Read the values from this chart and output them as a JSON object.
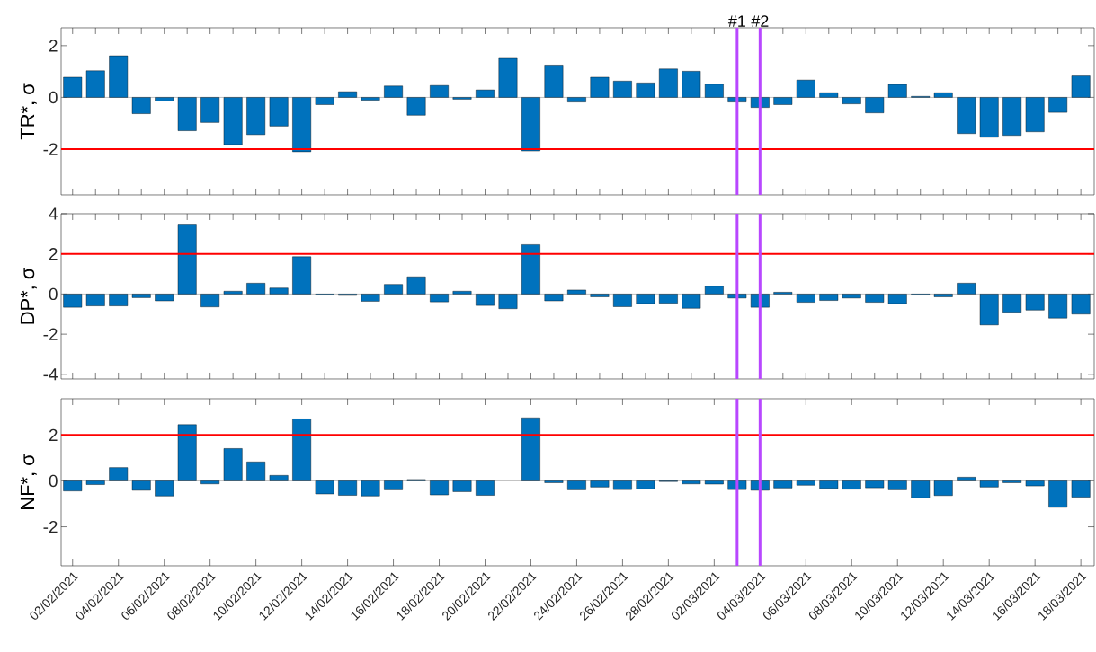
{
  "chart_data": [
    {
      "type": "bar",
      "ylabel": "TR*, σ",
      "color": "#0072bd",
      "tick_labels": "y",
      "x": [
        "2021-02-02",
        "2021-02-03",
        "2021-02-04",
        "2021-02-05",
        "2021-02-06",
        "2021-02-07",
        "2021-02-08",
        "2021-02-09",
        "2021-02-10",
        "2021-02-11",
        "2021-02-12",
        "2021-02-13",
        "2021-02-14",
        "2021-02-15",
        "2021-02-16",
        "2021-02-17",
        "2021-02-18",
        "2021-02-19",
        "2021-02-20",
        "2021-02-21",
        "2021-02-22",
        "2021-02-23",
        "2021-02-24",
        "2021-02-25",
        "2021-02-26",
        "2021-02-27",
        "2021-02-28",
        "2021-03-01",
        "2021-03-02",
        "2021-03-03",
        "2021-03-04",
        "2021-03-05",
        "2021-03-06",
        "2021-03-07",
        "2021-03-08",
        "2021-03-09",
        "2021-03-10",
        "2021-03-11",
        "2021-03-12",
        "2021-03-13",
        "2021-03-14",
        "2021-03-15",
        "2021-03-16",
        "2021-03-17",
        "2021-03-18"
      ],
      "values": [
        0.78,
        1.03,
        1.61,
        -0.63,
        -0.14,
        -1.29,
        -0.97,
        -1.83,
        -1.44,
        -1.11,
        -2.1,
        -0.28,
        0.22,
        -0.11,
        0.44,
        -0.69,
        0.46,
        -0.07,
        0.29,
        1.51,
        -2.07,
        1.25,
        -0.18,
        0.78,
        0.63,
        0.56,
        1.1,
        1.01,
        0.51,
        -0.18,
        -0.39,
        -0.28,
        0.67,
        0.18,
        -0.25,
        -0.6,
        0.5,
        0.04,
        0.18,
        -1.4,
        -1.54,
        -1.47,
        -1.33,
        -0.58,
        0.83
      ],
      "xlim": [
        "2021-02-01T12:00",
        "2021-03-18T14:00"
      ],
      "ylim": [
        -3.77,
        2.69
      ],
      "yticks": [
        -2,
        0,
        2
      ],
      "xticks": [
        "2021-02-02",
        "2021-02-03",
        "2021-02-04",
        "2021-02-05",
        "2021-02-06",
        "2021-02-07",
        "2021-02-08",
        "2021-02-09",
        "2021-02-10",
        "2021-02-11",
        "2021-02-12",
        "2021-02-13",
        "2021-02-14",
        "2021-02-15",
        "2021-02-16",
        "2021-02-17",
        "2021-02-18",
        "2021-02-19",
        "2021-02-20",
        "2021-02-21",
        "2021-02-22",
        "2021-02-23",
        "2021-02-24",
        "2021-02-25",
        "2021-02-26",
        "2021-02-27",
        "2021-02-28",
        "2021-03-01",
        "2021-03-02",
        "2021-03-03",
        "2021-03-04",
        "2021-03-05",
        "2021-03-06",
        "2021-03-07",
        "2021-03-08",
        "2021-03-09",
        "2021-03-10",
        "2021-03-11",
        "2021-03-12",
        "2021-03-13",
        "2021-03-14",
        "2021-03-15",
        "2021-03-16",
        "2021-03-17",
        "2021-03-18"
      ],
      "ref_lines": [
        {
          "axis": "y",
          "value": -2,
          "color": "#ff0000"
        },
        {
          "axis": "x",
          "value": "2021-03-03",
          "label": "#1",
          "color": "#b847ff"
        },
        {
          "axis": "x",
          "value": "2021-03-04",
          "label": "#2",
          "color": "#b847ff"
        }
      ]
    },
    {
      "type": "bar",
      "ylabel": "DP*, σ",
      "color": "#0072bd",
      "tick_labels": "y",
      "x": [
        "2021-02-02",
        "2021-02-03",
        "2021-02-04",
        "2021-02-05",
        "2021-02-06",
        "2021-02-07",
        "2021-02-08",
        "2021-02-09",
        "2021-02-10",
        "2021-02-11",
        "2021-02-12",
        "2021-02-13",
        "2021-02-14",
        "2021-02-15",
        "2021-02-16",
        "2021-02-17",
        "2021-02-18",
        "2021-02-19",
        "2021-02-20",
        "2021-02-21",
        "2021-02-22",
        "2021-02-23",
        "2021-02-24",
        "2021-02-25",
        "2021-02-26",
        "2021-02-27",
        "2021-02-28",
        "2021-03-01",
        "2021-03-02",
        "2021-03-03",
        "2021-03-04",
        "2021-03-05",
        "2021-03-06",
        "2021-03-07",
        "2021-03-08",
        "2021-03-09",
        "2021-03-10",
        "2021-03-11",
        "2021-03-12",
        "2021-03-13",
        "2021-03-14",
        "2021-03-15",
        "2021-03-16",
        "2021-03-17",
        "2021-03-18"
      ],
      "values": [
        -0.66,
        -0.59,
        -0.59,
        -0.18,
        -0.34,
        3.48,
        -0.64,
        0.14,
        0.54,
        0.3,
        1.86,
        -0.05,
        -0.07,
        -0.36,
        0.48,
        0.86,
        -0.39,
        0.14,
        -0.57,
        -0.73,
        2.46,
        -0.34,
        0.2,
        -0.14,
        -0.63,
        -0.48,
        -0.46,
        -0.71,
        0.39,
        -0.2,
        -0.66,
        0.09,
        -0.41,
        -0.32,
        -0.2,
        -0.41,
        -0.48,
        -0.05,
        -0.14,
        0.54,
        -1.54,
        -0.91,
        -0.8,
        -1.2,
        -1.0
      ],
      "xlim": [
        "2021-02-01T12:00",
        "2021-03-18T14:00"
      ],
      "ylim": [
        -4.23,
        4
      ],
      "yticks": [
        -4,
        -2,
        0,
        2,
        4
      ],
      "xticks": [
        "2021-02-02",
        "2021-02-03",
        "2021-02-04",
        "2021-02-05",
        "2021-02-06",
        "2021-02-07",
        "2021-02-08",
        "2021-02-09",
        "2021-02-10",
        "2021-02-11",
        "2021-02-12",
        "2021-02-13",
        "2021-02-14",
        "2021-02-15",
        "2021-02-16",
        "2021-02-17",
        "2021-02-18",
        "2021-02-19",
        "2021-02-20",
        "2021-02-21",
        "2021-02-22",
        "2021-02-23",
        "2021-02-24",
        "2021-02-25",
        "2021-02-26",
        "2021-02-27",
        "2021-02-28",
        "2021-03-01",
        "2021-03-02",
        "2021-03-03",
        "2021-03-04",
        "2021-03-05",
        "2021-03-06",
        "2021-03-07",
        "2021-03-08",
        "2021-03-09",
        "2021-03-10",
        "2021-03-11",
        "2021-03-12",
        "2021-03-13",
        "2021-03-14",
        "2021-03-15",
        "2021-03-16",
        "2021-03-17",
        "2021-03-18"
      ],
      "ref_lines": [
        {
          "axis": "y",
          "value": 2,
          "color": "#ff0000"
        },
        {
          "axis": "x",
          "value": "2021-03-03",
          "color": "#b847ff"
        },
        {
          "axis": "x",
          "value": "2021-03-04",
          "color": "#b847ff"
        }
      ]
    },
    {
      "type": "bar",
      "ylabel": "NF*, σ",
      "color": "#0072bd",
      "x": [
        "2021-02-02",
        "2021-02-03",
        "2021-02-04",
        "2021-02-05",
        "2021-02-06",
        "2021-02-07",
        "2021-02-08",
        "2021-02-09",
        "2021-02-10",
        "2021-02-11",
        "2021-02-12",
        "2021-02-13",
        "2021-02-14",
        "2021-02-15",
        "2021-02-16",
        "2021-02-17",
        "2021-02-18",
        "2021-02-19",
        "2021-02-20",
        "2021-02-21",
        "2021-02-22",
        "2021-02-23",
        "2021-02-24",
        "2021-02-25",
        "2021-02-26",
        "2021-02-27",
        "2021-02-28",
        "2021-03-01",
        "2021-03-02",
        "2021-03-03",
        "2021-03-04",
        "2021-03-05",
        "2021-03-06",
        "2021-03-07",
        "2021-03-08",
        "2021-03-09",
        "2021-03-10",
        "2021-03-11",
        "2021-03-12",
        "2021-03-13",
        "2021-03-14",
        "2021-03-15",
        "2021-03-16",
        "2021-03-17",
        "2021-03-18"
      ],
      "values": [
        -0.44,
        -0.16,
        0.58,
        -0.41,
        -0.66,
        2.45,
        -0.13,
        1.41,
        0.83,
        0.24,
        2.7,
        -0.57,
        -0.63,
        -0.66,
        -0.39,
        0.06,
        -0.61,
        -0.47,
        -0.63,
        null,
        2.75,
        -0.08,
        -0.39,
        -0.27,
        -0.38,
        -0.35,
        -0.03,
        -0.13,
        -0.14,
        -0.38,
        -0.41,
        -0.31,
        -0.19,
        -0.33,
        -0.36,
        -0.3,
        -0.39,
        -0.74,
        -0.64,
        0.16,
        -0.27,
        -0.08,
        -0.22,
        -1.15,
        -0.71
      ],
      "xlim": [
        "2021-02-01T12:00",
        "2021-03-18T14:00"
      ],
      "ylim": [
        -3.7,
        3.58
      ],
      "yticks": [
        -2,
        0,
        2
      ],
      "xticks": [
        {
          "value": "2021-02-02",
          "label": "02/02/2021"
        },
        {
          "value": "2021-02-04",
          "label": "04/02/2021"
        },
        {
          "value": "2021-02-06",
          "label": "06/02/2021"
        },
        {
          "value": "2021-02-08",
          "label": "08/02/2021"
        },
        {
          "value": "2021-02-10",
          "label": "10/02/2021"
        },
        {
          "value": "2021-02-12",
          "label": "12/02/2021"
        },
        {
          "value": "2021-02-14",
          "label": "14/02/2021"
        },
        {
          "value": "2021-02-16",
          "label": "16/02/2021"
        },
        {
          "value": "2021-02-18",
          "label": "18/02/2021"
        },
        {
          "value": "2021-02-20",
          "label": "20/02/2021"
        },
        {
          "value": "2021-02-22",
          "label": "22/02/2021"
        },
        {
          "value": "2021-02-24",
          "label": "24/02/2021"
        },
        {
          "value": "2021-02-26",
          "label": "26/02/2021"
        },
        {
          "value": "2021-02-28",
          "label": "28/02/2021"
        },
        {
          "value": "2021-03-02",
          "label": "02/03/2021"
        },
        {
          "value": "2021-03-04",
          "label": "04/03/2021"
        },
        {
          "value": "2021-03-06",
          "label": "06/03/2021"
        },
        {
          "value": "2021-03-08",
          "label": "08/03/2021"
        },
        {
          "value": "2021-03-10",
          "label": "10/03/2021"
        },
        {
          "value": "2021-03-12",
          "label": "12/03/2021"
        },
        {
          "value": "2021-03-14",
          "label": "14/03/2021"
        },
        {
          "value": "2021-03-16",
          "label": "16/03/2021"
        },
        {
          "value": "2021-03-18",
          "label": "18/03/2021"
        }
      ],
      "ref_lines": [
        {
          "axis": "y",
          "value": 2,
          "color": "#ff0000"
        },
        {
          "axis": "x",
          "value": "2021-03-03",
          "color": "#b847ff"
        },
        {
          "axis": "x",
          "value": "2021-03-04",
          "color": "#b847ff"
        }
      ]
    }
  ]
}
